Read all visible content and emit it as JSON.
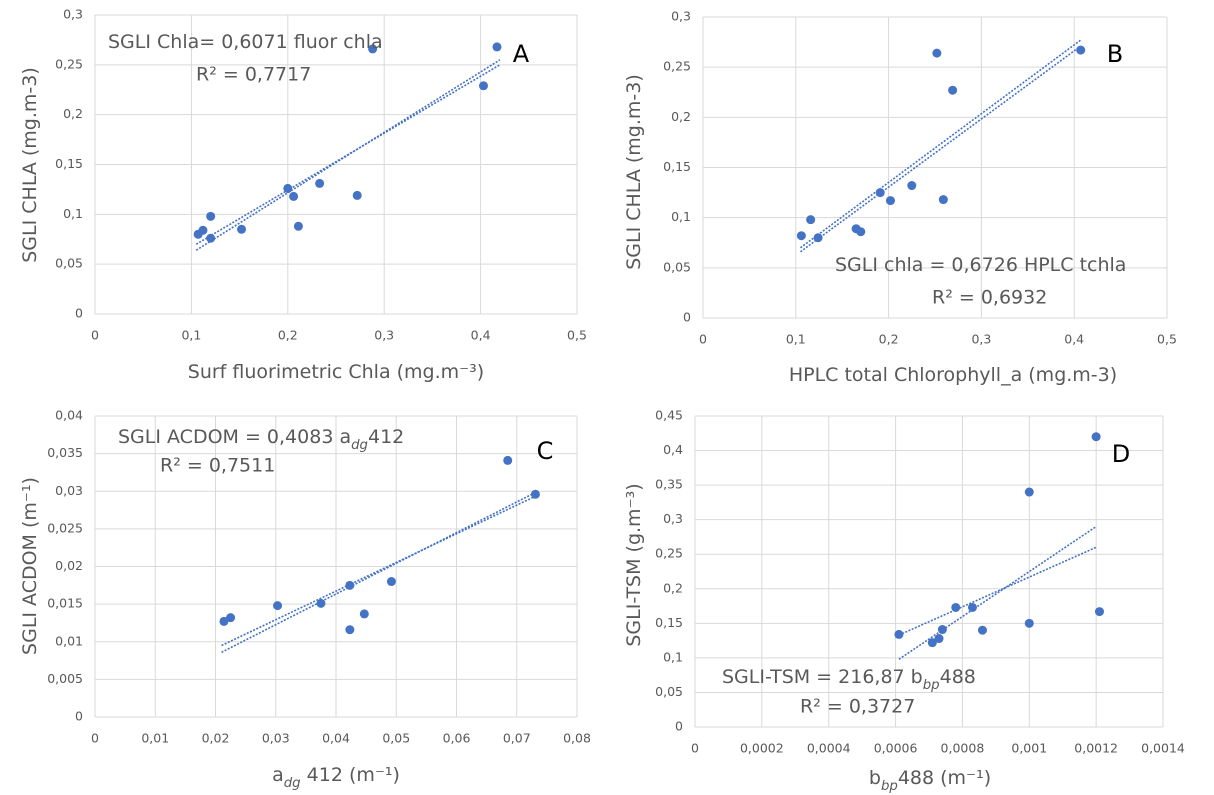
{
  "chart_data": [
    {
      "type": "scatter",
      "panel": "A",
      "xlabel": [
        "Surf fluorimetric Chla (mg.m⁻³)"
      ],
      "ylabel": [
        "SGLI CHLA (mg.m-3)"
      ],
      "equation": [
        "SGLI Chla= 0,6071 fluor chla"
      ],
      "r2": "R² = 0,7717",
      "color": "#4472c4",
      "grid": true,
      "x": [
        0.107,
        0.112,
        0.12,
        0.12,
        0.152,
        0.2,
        0.206,
        0.211,
        0.233,
        0.272,
        0.288,
        0.403,
        0.417
      ],
      "y": [
        0.08,
        0.084,
        0.098,
        0.076,
        0.085,
        0.126,
        0.118,
        0.088,
        0.131,
        0.119,
        0.266,
        0.229,
        0.268
      ],
      "trendlines": [
        {
          "x": [
            0.105,
            0.42
          ],
          "y": [
            0.064,
            0.255
          ]
        },
        {
          "x": [
            0.105,
            0.42
          ],
          "y": [
            0.07,
            0.25
          ]
        }
      ],
      "xlim": [
        0,
        0.5
      ],
      "ylim": [
        0,
        0.3
      ],
      "xticks": [
        0,
        {
          "value": 0.1,
          "label": "0,1"
        },
        {
          "value": 0.2,
          "label": "0,2"
        },
        {
          "value": 0.3,
          "label": "0,3"
        },
        {
          "value": 0.4,
          "label": "0,4"
        },
        {
          "value": 0.5,
          "label": "0,5"
        }
      ],
      "yticks": [
        0,
        {
          "value": 0.05,
          "label": "0,05"
        },
        {
          "value": 0.1,
          "label": "0,1"
        },
        {
          "value": 0.15,
          "label": "0,15"
        },
        {
          "value": 0.2,
          "label": "0,2"
        },
        {
          "value": 0.25,
          "label": "0,25"
        },
        {
          "value": 0.3,
          "label": "0,3"
        }
      ]
    },
    {
      "type": "scatter",
      "panel": "B",
      "xlabel": [
        "HPLC total Chlorophyll_a (mg.m-3)"
      ],
      "ylabel": [
        "SGLI CHLA (mg.m-3)"
      ],
      "equation": [
        "SGLI chla = 0,6726 HPLC tchla"
      ],
      "r2": "R² = 0,6932",
      "color": "#4472c4",
      "grid": true,
      "x": [
        0.106,
        0.116,
        0.124,
        0.165,
        0.17,
        0.191,
        0.202,
        0.225,
        0.252,
        0.259,
        0.269,
        0.407
      ],
      "y": [
        0.082,
        0.098,
        0.08,
        0.089,
        0.086,
        0.125,
        0.117,
        0.132,
        0.264,
        0.118,
        0.227,
        0.267
      ],
      "trendlines": [
        {
          "x": [
            0.105,
            0.407
          ],
          "y": [
            0.07,
            0.277
          ]
        },
        {
          "x": [
            0.105,
            0.407
          ],
          "y": [
            0.066,
            0.271
          ]
        }
      ],
      "xlim": [
        0,
        0.5
      ],
      "ylim": [
        0,
        0.3
      ],
      "xticks": [
        0,
        {
          "value": 0.1,
          "label": "0,1"
        },
        {
          "value": 0.2,
          "label": "0,2"
        },
        {
          "value": 0.3,
          "label": "0,3"
        },
        {
          "value": 0.4,
          "label": "0,4"
        },
        {
          "value": 0.5,
          "label": "0,5"
        }
      ],
      "yticks": [
        0,
        {
          "value": 0.05,
          "label": "0,05"
        },
        {
          "value": 0.1,
          "label": "0,1"
        },
        {
          "value": 0.15,
          "label": "0,15"
        },
        {
          "value": 0.2,
          "label": "0,2"
        },
        {
          "value": 0.25,
          "label": "0,25"
        },
        {
          "value": 0.3,
          "label": "0,3"
        }
      ]
    },
    {
      "type": "scatter",
      "panel": "C",
      "xlabel": [
        "a",
        "dg",
        " 412 (m⁻¹)"
      ],
      "ylabel": [
        "SGLI ACDOM (m⁻¹)"
      ],
      "equation": [
        "SGLI ACDOM = 0,4083 a",
        "dg",
        "412"
      ],
      "r2": "R² = 0,7511",
      "color": "#4472c4",
      "grid": true,
      "x": [
        0.0214,
        0.0225,
        0.0303,
        0.0375,
        0.0423,
        0.0423,
        0.0447,
        0.0492,
        0.0685,
        0.0731
      ],
      "y": [
        0.0127,
        0.0132,
        0.0148,
        0.0151,
        0.0175,
        0.0116,
        0.0137,
        0.018,
        0.0341,
        0.0296
      ],
      "trendlines": [
        {
          "x": [
            0.021,
            0.073
          ],
          "y": [
            0.0086,
            0.0298
          ]
        },
        {
          "x": [
            0.021,
            0.073
          ],
          "y": [
            0.0095,
            0.0293
          ]
        }
      ],
      "xlim": [
        0,
        0.08
      ],
      "ylim": [
        0,
        0.04
      ],
      "xticks": [
        0,
        {
          "value": 0.01,
          "label": "0,01"
        },
        {
          "value": 0.02,
          "label": "0,02"
        },
        {
          "value": 0.03,
          "label": "0,03"
        },
        {
          "value": 0.04,
          "label": "0,04"
        },
        {
          "value": 0.05,
          "label": "0,05"
        },
        {
          "value": 0.06,
          "label": "0,06"
        },
        {
          "value": 0.07,
          "label": "0,07"
        },
        {
          "value": 0.08,
          "label": "0,08"
        }
      ],
      "yticks": [
        0,
        {
          "value": 0.005,
          "label": "0,005"
        },
        {
          "value": 0.01,
          "label": "0,01"
        },
        {
          "value": 0.015,
          "label": "0,015"
        },
        {
          "value": 0.02,
          "label": "0,02"
        },
        {
          "value": 0.025,
          "label": "0,025"
        },
        {
          "value": 0.03,
          "label": "0,03"
        },
        {
          "value": 0.035,
          "label": "0,035"
        },
        {
          "value": 0.04,
          "label": "0,04"
        }
      ]
    },
    {
      "type": "scatter",
      "panel": "D",
      "xlabel": [
        "b",
        "bp",
        "488 (m⁻¹)"
      ],
      "ylabel": [
        "SGLI-TSM (g.m⁻³)"
      ],
      "equation": [
        "SGLI-TSM = 216,87 b",
        "bp",
        "488"
      ],
      "r2": "R² = 0,3727",
      "color": "#4472c4",
      "grid": true,
      "x": [
        0.00061,
        0.00071,
        0.00073,
        0.00074,
        0.00078,
        0.00083,
        0.00086,
        0.001,
        0.001,
        0.0012,
        0.00121
      ],
      "y": [
        0.134,
        0.122,
        0.128,
        0.141,
        0.173,
        0.173,
        0.14,
        0.34,
        0.15,
        0.42,
        0.167
      ],
      "trendlines": [
        {
          "x": [
            0.00061,
            0.0012
          ],
          "y": [
            0.098,
            0.29
          ]
        },
        {
          "x": [
            0.00061,
            0.0012
          ],
          "y": [
            0.133,
            0.26
          ]
        }
      ],
      "xlim": [
        0,
        0.0014
      ],
      "ylim": [
        0,
        0.45
      ],
      "xticks": [
        0,
        {
          "value": 0.0002,
          "label": "0,0002"
        },
        {
          "value": 0.0004,
          "label": "0,0004"
        },
        {
          "value": 0.0006,
          "label": "0,0006"
        },
        {
          "value": 0.0008,
          "label": "0,0008"
        },
        {
          "value": 0.001,
          "label": "0,001"
        },
        {
          "value": 0.0012,
          "label": "0,0012"
        },
        {
          "value": 0.0014,
          "label": "0,0014"
        }
      ],
      "yticks": [
        0,
        {
          "value": 0.05,
          "label": "0,05"
        },
        {
          "value": 0.1,
          "label": "0,1"
        },
        {
          "value": 0.15,
          "label": "0,15"
        },
        {
          "value": 0.2,
          "label": "0,2"
        },
        {
          "value": 0.25,
          "label": "0,25"
        },
        {
          "value": 0.3,
          "label": "0,3"
        },
        {
          "value": 0.35,
          "label": "0,35"
        },
        {
          "value": 0.4,
          "label": "0,4"
        },
        {
          "value": 0.45,
          "label": "0,45"
        }
      ]
    }
  ]
}
